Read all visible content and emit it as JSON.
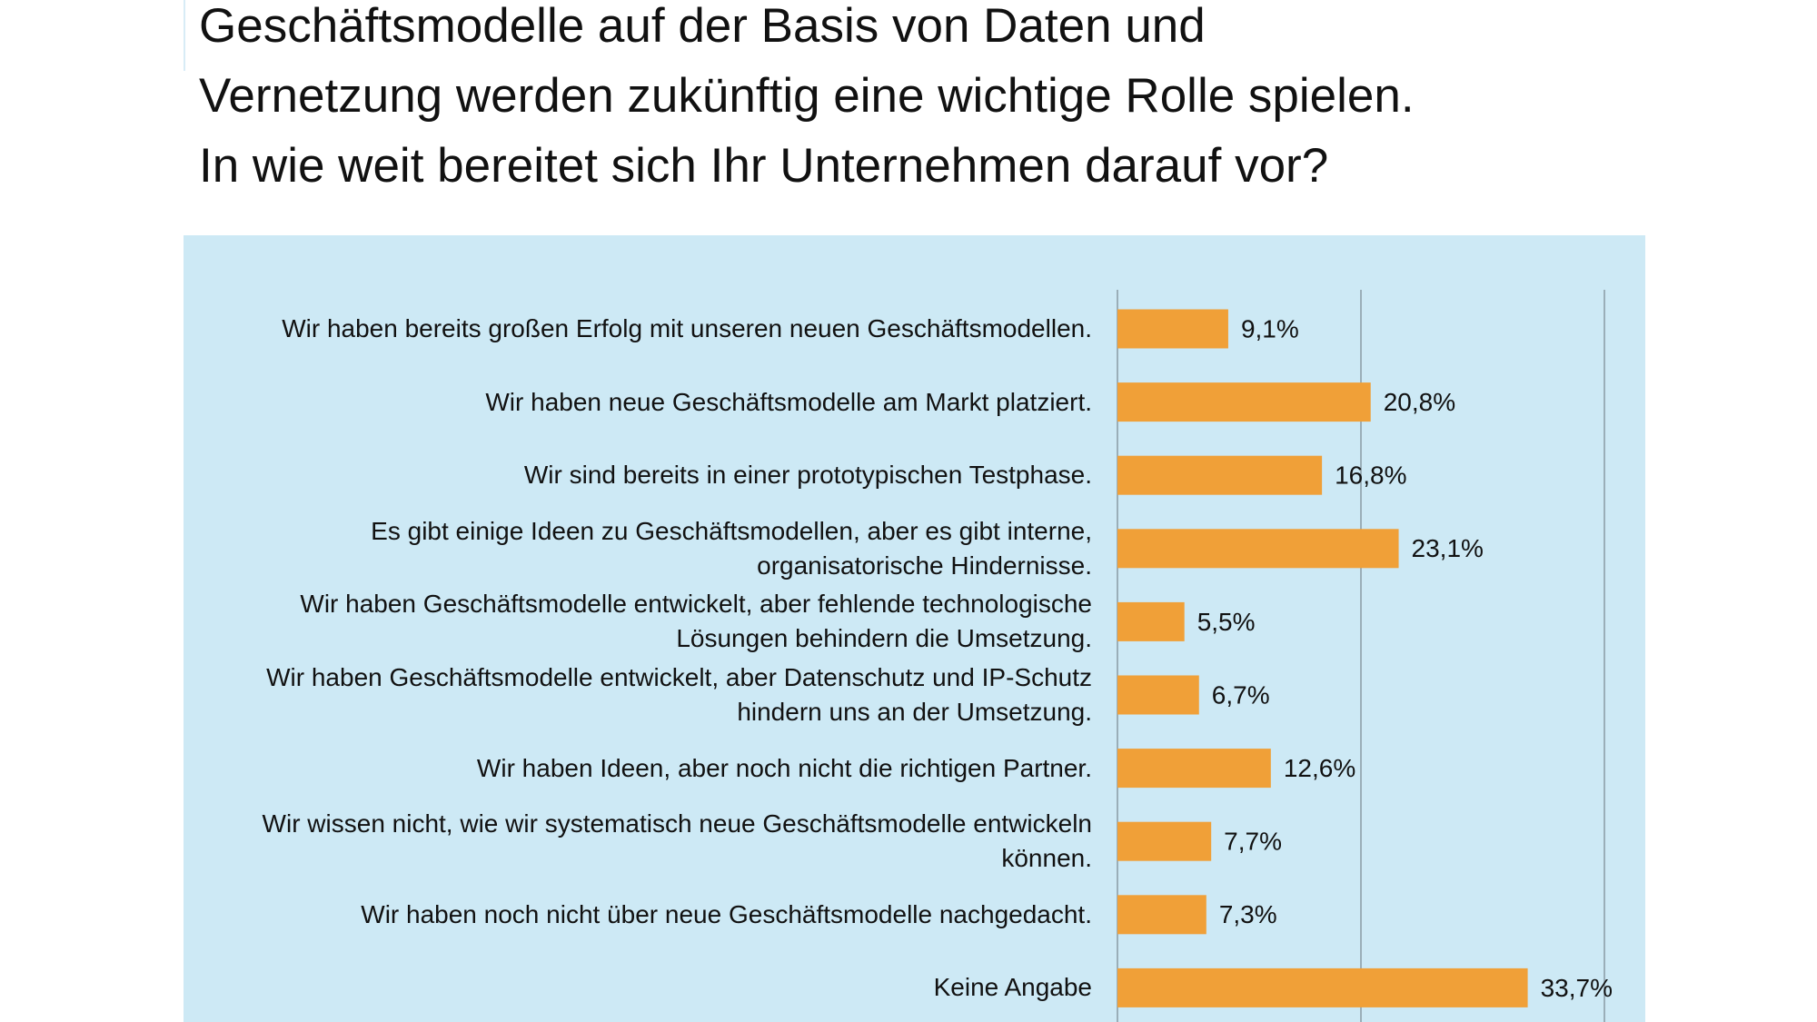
{
  "chart_data": {
    "type": "bar",
    "orientation": "horizontal",
    "title": [
      "Geschäftsmodelle auf der Basis von Daten und",
      "Vernetzung werden zukünftig eine wichtige Rolle spielen.",
      "In wie weit bereitet sich Ihr Unternehmen darauf vor?"
    ],
    "categories": [
      "Wir haben bereits großen Erfolg mit unseren neuen Geschäftsmodellen.",
      "Wir haben neue Geschäftsmodelle am Markt platziert.",
      "Wir sind bereits in einer prototypischen Testphase.",
      "Es gibt einige Ideen zu Geschäftsmodellen, aber es gibt interne, organisatorische Hindernisse.",
      "Wir haben Geschäftsmodelle entwickelt, aber fehlende technologische Lösungen behindern die Umsetzung.",
      "Wir haben Geschäftsmodelle entwickelt, aber Datenschutz und IP-Schutz hindern uns an der Umsetzung.",
      "Wir haben Ideen, aber noch nicht die richtigen Partner.",
      "Wir wissen nicht, wie wir systematisch neue Geschäftsmodelle entwickeln können.",
      "Wir haben noch nicht über neue Geschäftsmodelle nachgedacht.",
      "Keine Angabe"
    ],
    "values": [
      9.1,
      20.8,
      16.8,
      23.1,
      5.5,
      6.7,
      12.6,
      7.7,
      7.3,
      33.7
    ],
    "value_labels": [
      "9,1%",
      "20,8%",
      "16,8%",
      "23,1%",
      "5,5%",
      "6,7%",
      "12,6%",
      "7,7%",
      "7,3%",
      "33,7%"
    ],
    "color": "#f0a038",
    "xlim": [
      0,
      40
    ],
    "xticks": [
      0,
      20,
      40
    ],
    "grid": true
  }
}
